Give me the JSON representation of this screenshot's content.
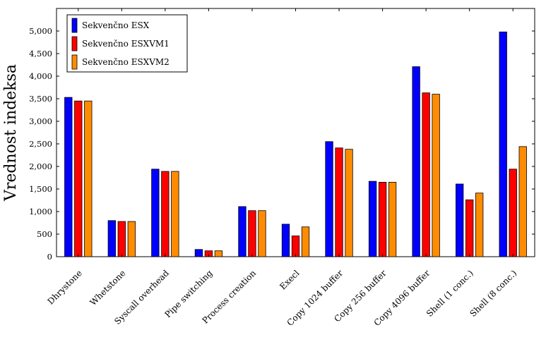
{
  "chart_data": {
    "type": "bar",
    "ylabel": "Vrednost indeksa",
    "xlabel": "",
    "title": "",
    "ylim": [
      0,
      5500
    ],
    "yticks": [
      0,
      500,
      1000,
      1500,
      2000,
      2500,
      3000,
      3500,
      4000,
      4500,
      5000
    ],
    "ytick_labels": [
      "0",
      "500",
      "1,000",
      "1,500",
      "2,000",
      "2,500",
      "3,000",
      "3,500",
      "4,000",
      "4,500",
      "5,000"
    ],
    "categories": [
      "Dhrystone",
      "Whetstone",
      "Syscall overhead",
      "Pipe switching",
      "Process creation",
      "Execl",
      "Copy 1024 buffer",
      "Copy 256 buffer",
      "Copy 4096 buffer",
      "Shell (1 conc.)",
      "Shell (8 conc.)"
    ],
    "series": [
      {
        "name": "Sekvenčno ESX",
        "color": "#0000ff",
        "values": [
          3530,
          800,
          1940,
          160,
          1110,
          720,
          2550,
          1670,
          4210,
          1610,
          4980
        ]
      },
      {
        "name": "Sekvenčno ESXVM1",
        "color": "#ff0000",
        "values": [
          3450,
          780,
          1890,
          130,
          1020,
          460,
          2410,
          1650,
          3630,
          1260,
          1940
        ]
      },
      {
        "name": "Sekvenčno ESXVM2",
        "color": "#ff8c00",
        "values": [
          3450,
          780,
          1890,
          130,
          1020,
          660,
          2380,
          1650,
          3600,
          1410,
          2440
        ]
      }
    ],
    "grid": false,
    "legend_position": "top-left"
  }
}
